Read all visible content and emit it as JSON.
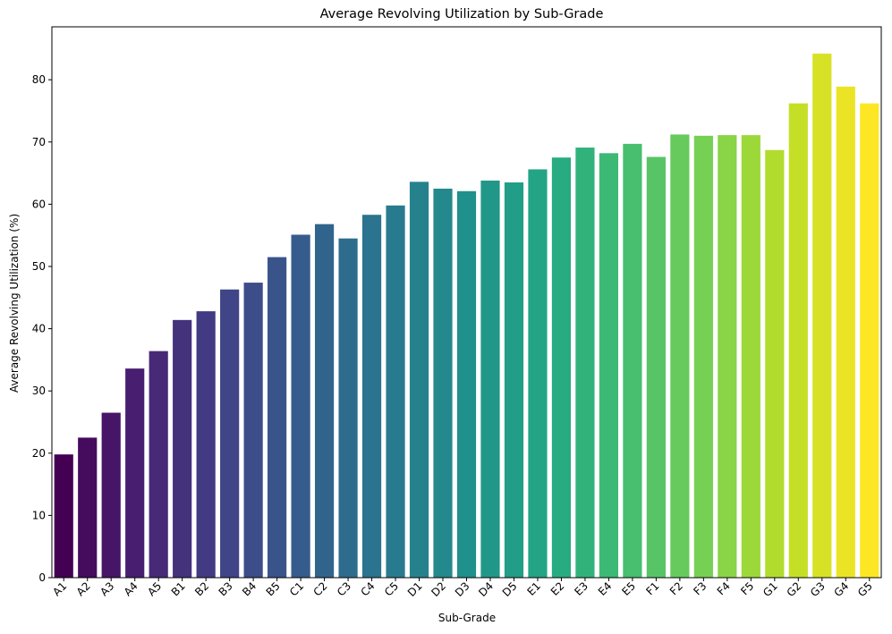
{
  "chart_data": {
    "type": "bar",
    "title": "Average Revolving Utilization by Sub-Grade",
    "xlabel": "Sub-Grade",
    "ylabel": "Average Revolving Utilization (%)",
    "ylim": [
      0,
      88.5
    ],
    "yticks": [
      0,
      10,
      20,
      30,
      40,
      50,
      60,
      70,
      80
    ],
    "grid": false,
    "legend": "none",
    "palette": "viridis",
    "categories": [
      "A1",
      "A2",
      "A3",
      "A4",
      "A5",
      "B1",
      "B2",
      "B3",
      "B4",
      "B5",
      "C1",
      "C2",
      "C3",
      "C4",
      "C5",
      "D1",
      "D2",
      "D3",
      "D4",
      "D5",
      "E1",
      "E2",
      "E3",
      "E4",
      "E5",
      "F1",
      "F2",
      "F3",
      "F4",
      "F5",
      "G1",
      "G2",
      "G3",
      "G4",
      "G5"
    ],
    "values": [
      19.8,
      22.5,
      26.5,
      33.6,
      36.4,
      41.4,
      42.8,
      46.3,
      47.4,
      51.5,
      55.1,
      56.8,
      54.5,
      58.3,
      59.8,
      63.6,
      62.5,
      62.1,
      63.8,
      63.5,
      65.6,
      67.5,
      69.1,
      68.2,
      69.7,
      67.6,
      71.2,
      71.0,
      71.1,
      71.1,
      68.7,
      76.2,
      84.2,
      78.9,
      76.2
    ]
  }
}
